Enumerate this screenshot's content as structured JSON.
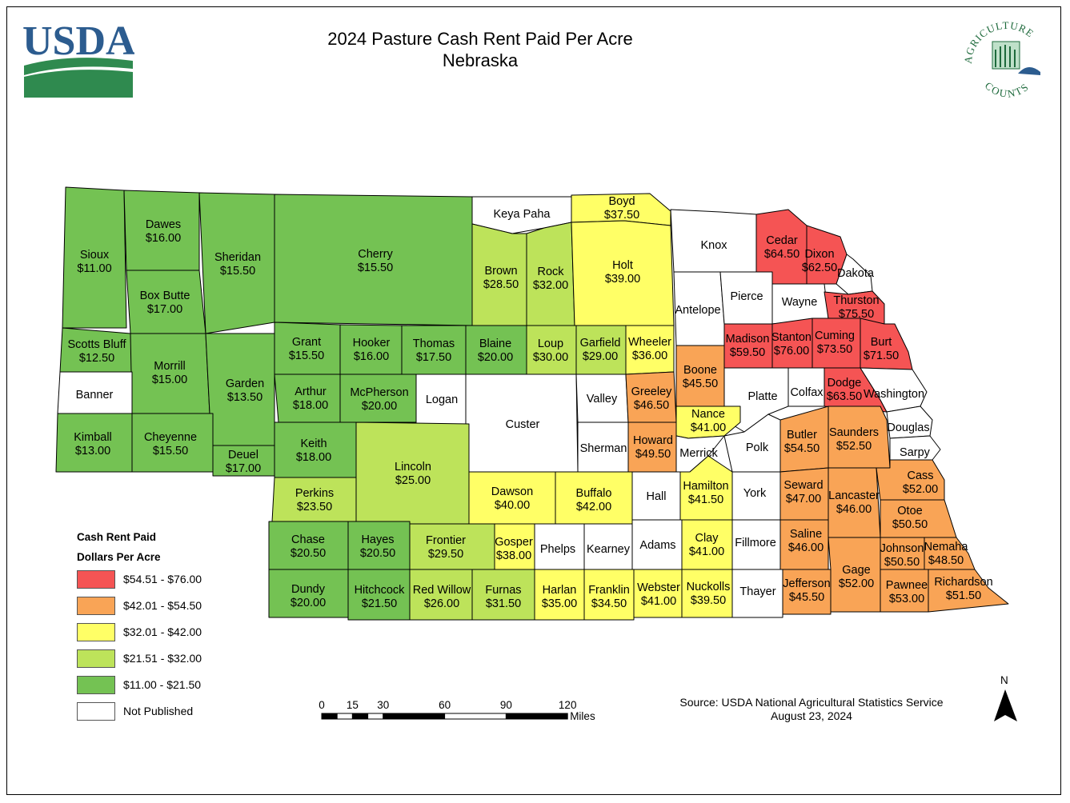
{
  "title": "2024 Pasture Cash Rent Paid Per Acre",
  "subtitle": "Nebraska",
  "usda_logo_text": "USDA",
  "ag_logo": {
    "top_text": "AGRICULTURE",
    "bottom_text": "COUNTS"
  },
  "colors": {
    "class1": "#f55454",
    "class2": "#f9a456",
    "class3": "#ffff66",
    "class4": "#bde35a",
    "class5": "#74c253",
    "not_published": "#ffffff"
  },
  "legend": {
    "title_line1": "Cash Rent Paid",
    "title_line2": "Dollars Per Acre",
    "items": [
      {
        "label": "$54.51 - $76.00",
        "color": "#f55454"
      },
      {
        "label": "$42.01 - $54.50",
        "color": "#f9a456"
      },
      {
        "label": "$32.01 - $42.00",
        "color": "#ffff66"
      },
      {
        "label": "$21.51 - $32.00",
        "color": "#bde35a"
      },
      {
        "label": "$11.00 - $21.50",
        "color": "#74c253"
      },
      {
        "label": "Not Published",
        "color": "#ffffff"
      }
    ]
  },
  "scale_bar": {
    "ticks": [
      "0",
      "15",
      "30",
      "60",
      "90",
      "120"
    ],
    "unit": "Miles"
  },
  "north_arrow": "N",
  "source": {
    "line1": "Source: USDA National Agricultural Statistics Service",
    "line2": "August 23, 2024"
  },
  "counties": [
    {
      "name": "Sioux",
      "value": "$11.00",
      "class": 5
    },
    {
      "name": "Dawes",
      "value": "$16.00",
      "class": 5
    },
    {
      "name": "Box Butte",
      "value": "$17.00",
      "class": 5
    },
    {
      "name": "Sheridan",
      "value": "$15.50",
      "class": 5
    },
    {
      "name": "Cherry",
      "value": "$15.50",
      "class": 5
    },
    {
      "name": "Keya Paha",
      "value": "",
      "class": 0
    },
    {
      "name": "Boyd",
      "value": "$37.50",
      "class": 3
    },
    {
      "name": "Brown",
      "value": "$28.50",
      "class": 4
    },
    {
      "name": "Rock",
      "value": "$32.00",
      "class": 4
    },
    {
      "name": "Holt",
      "value": "$39.00",
      "class": 3
    },
    {
      "name": "Knox",
      "value": "",
      "class": 0
    },
    {
      "name": "Cedar",
      "value": "$64.50",
      "class": 1
    },
    {
      "name": "Dixon",
      "value": "$62.50",
      "class": 1
    },
    {
      "name": "Dakota",
      "value": "",
      "class": 0
    },
    {
      "name": "Scotts Bluff",
      "value": "$12.50",
      "class": 5
    },
    {
      "name": "Morrill",
      "value": "$15.00",
      "class": 5
    },
    {
      "name": "Garden",
      "value": "$13.50",
      "class": 5
    },
    {
      "name": "Grant",
      "value": "$15.50",
      "class": 5
    },
    {
      "name": "Hooker",
      "value": "$16.00",
      "class": 5
    },
    {
      "name": "Thomas",
      "value": "$17.50",
      "class": 5
    },
    {
      "name": "Blaine",
      "value": "$20.00",
      "class": 5
    },
    {
      "name": "Loup",
      "value": "$30.00",
      "class": 4
    },
    {
      "name": "Garfield",
      "value": "$29.00",
      "class": 4
    },
    {
      "name": "Wheeler",
      "value": "$36.00",
      "class": 3
    },
    {
      "name": "Antelope",
      "value": "",
      "class": 0
    },
    {
      "name": "Pierce",
      "value": "",
      "class": 0
    },
    {
      "name": "Wayne",
      "value": "",
      "class": 0
    },
    {
      "name": "Thurston",
      "value": "$75.50",
      "class": 1
    },
    {
      "name": "Banner",
      "value": "",
      "class": 0
    },
    {
      "name": "Arthur",
      "value": "$18.00",
      "class": 5
    },
    {
      "name": "McPherson",
      "value": "$20.00",
      "class": 5
    },
    {
      "name": "Logan",
      "value": "",
      "class": 0
    },
    {
      "name": "Custer",
      "value": "",
      "class": 0
    },
    {
      "name": "Valley",
      "value": "",
      "class": 0
    },
    {
      "name": "Greeley",
      "value": "$46.50",
      "class": 2
    },
    {
      "name": "Boone",
      "value": "$45.50",
      "class": 2
    },
    {
      "name": "Madison",
      "value": "$59.50",
      "class": 1
    },
    {
      "name": "Stanton",
      "value": "$76.00",
      "class": 1
    },
    {
      "name": "Cuming",
      "value": "$73.50",
      "class": 1
    },
    {
      "name": "Burt",
      "value": "$71.50",
      "class": 1
    },
    {
      "name": "Platte",
      "value": "",
      "class": 0
    },
    {
      "name": "Colfax",
      "value": "",
      "class": 0
    },
    {
      "name": "Dodge",
      "value": "$63.50",
      "class": 1
    },
    {
      "name": "Washington",
      "value": "",
      "class": 0
    },
    {
      "name": "Kimball",
      "value": "$13.00",
      "class": 5
    },
    {
      "name": "Cheyenne",
      "value": "$15.50",
      "class": 5
    },
    {
      "name": "Deuel",
      "value": "$17.00",
      "class": 5
    },
    {
      "name": "Keith",
      "value": "$18.00",
      "class": 5
    },
    {
      "name": "Lincoln",
      "value": "$25.00",
      "class": 4
    },
    {
      "name": "Sherman",
      "value": "",
      "class": 0
    },
    {
      "name": "Howard",
      "value": "$49.50",
      "class": 2
    },
    {
      "name": "Nance",
      "value": "$41.00",
      "class": 3
    },
    {
      "name": "Merrick",
      "value": "",
      "class": 0
    },
    {
      "name": "Polk",
      "value": "",
      "class": 0
    },
    {
      "name": "Butler",
      "value": "$54.50",
      "class": 2
    },
    {
      "name": "Saunders",
      "value": "$52.50",
      "class": 2
    },
    {
      "name": "Douglas",
      "value": "",
      "class": 0
    },
    {
      "name": "Sarpy",
      "value": "",
      "class": 0
    },
    {
      "name": "Perkins",
      "value": "$23.50",
      "class": 4
    },
    {
      "name": "Dawson",
      "value": "$40.00",
      "class": 3
    },
    {
      "name": "Buffalo",
      "value": "$42.00",
      "class": 3
    },
    {
      "name": "Hall",
      "value": "",
      "class": 0
    },
    {
      "name": "Hamilton",
      "value": "$41.50",
      "class": 3
    },
    {
      "name": "York",
      "value": "",
      "class": 0
    },
    {
      "name": "Seward",
      "value": "$47.00",
      "class": 2
    },
    {
      "name": "Lancaster",
      "value": "$46.00",
      "class": 2
    },
    {
      "name": "Cass",
      "value": "$52.00",
      "class": 2
    },
    {
      "name": "Otoe",
      "value": "$50.50",
      "class": 2
    },
    {
      "name": "Chase",
      "value": "$20.50",
      "class": 5
    },
    {
      "name": "Hayes",
      "value": "$20.50",
      "class": 5
    },
    {
      "name": "Frontier",
      "value": "$29.50",
      "class": 4
    },
    {
      "name": "Gosper",
      "value": "$38.00",
      "class": 3
    },
    {
      "name": "Phelps",
      "value": "",
      "class": 0
    },
    {
      "name": "Kearney",
      "value": "",
      "class": 0
    },
    {
      "name": "Adams",
      "value": "",
      "class": 0
    },
    {
      "name": "Clay",
      "value": "$41.00",
      "class": 3
    },
    {
      "name": "Fillmore",
      "value": "",
      "class": 0
    },
    {
      "name": "Saline",
      "value": "$46.00",
      "class": 2
    },
    {
      "name": "Johnson",
      "value": "$50.50",
      "class": 2
    },
    {
      "name": "Nemaha",
      "value": "$48.50",
      "class": 2
    },
    {
      "name": "Dundy",
      "value": "$20.00",
      "class": 5
    },
    {
      "name": "Hitchcock",
      "value": "$21.50",
      "class": 5
    },
    {
      "name": "Red Willow",
      "value": "$26.00",
      "class": 4
    },
    {
      "name": "Furnas",
      "value": "$31.50",
      "class": 4
    },
    {
      "name": "Harlan",
      "value": "$35.00",
      "class": 3
    },
    {
      "name": "Franklin",
      "value": "$34.50",
      "class": 3
    },
    {
      "name": "Webster",
      "value": "$41.00",
      "class": 3
    },
    {
      "name": "Nuckolls",
      "value": "$39.50",
      "class": 3
    },
    {
      "name": "Thayer",
      "value": "",
      "class": 0
    },
    {
      "name": "Jefferson",
      "value": "$45.50",
      "class": 2
    },
    {
      "name": "Gage",
      "value": "$52.00",
      "class": 2
    },
    {
      "name": "Pawnee",
      "value": "$53.00",
      "class": 2
    },
    {
      "name": "Richardson",
      "value": "$51.50",
      "class": 2
    }
  ]
}
